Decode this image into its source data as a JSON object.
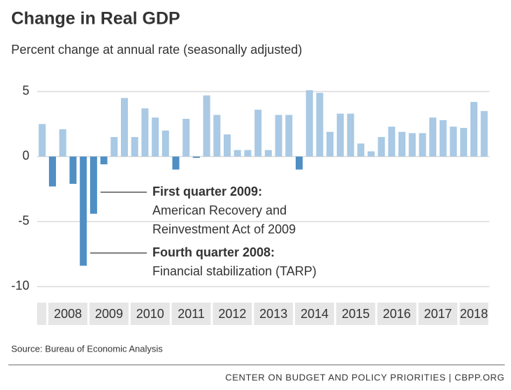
{
  "chart_data": {
    "type": "bar",
    "title": "Change in Real GDP",
    "subtitle": "Percent change at annual rate (seasonally adjusted)",
    "values": [
      2.5,
      -2.3,
      2.1,
      -2.1,
      -8.4,
      -4.4,
      -0.6,
      1.5,
      4.5,
      1.5,
      3.7,
      3.0,
      2.0,
      -1.0,
      2.9,
      -0.1,
      4.7,
      3.2,
      1.7,
      0.5,
      0.5,
      3.6,
      0.5,
      3.2,
      3.2,
      -1.0,
      5.1,
      4.9,
      1.9,
      3.3,
      3.3,
      1.0,
      0.4,
      1.5,
      2.3,
      1.9,
      1.8,
      1.8,
      3.0,
      2.8,
      2.3,
      2.2,
      4.2,
      3.5
    ],
    "year_labels": [
      "2008",
      "2009",
      "2010",
      "2011",
      "2012",
      "2013",
      "2014",
      "2015",
      "2016",
      "2017",
      "2018"
    ],
    "positive_color": "#a9c9e4",
    "negative_color": "#4f8fc4",
    "ylim": [
      -10.5,
      5.6
    ],
    "yticks": [
      -10,
      -5,
      0,
      5
    ],
    "grid": true,
    "annotations": [
      {
        "lines": [
          "First quarter 2009:",
          "American Recovery and",
          "Reinvestment Act of 2009"
        ]
      },
      {
        "lines": [
          "Fourth quarter 2008:",
          "Financial stabilization (TARP)"
        ]
      }
    ],
    "source": "Source: Bureau of Economic Analysis",
    "footer": "CENTER ON BUDGET AND POLICY PRIORITIES | CBPP.ORG"
  }
}
